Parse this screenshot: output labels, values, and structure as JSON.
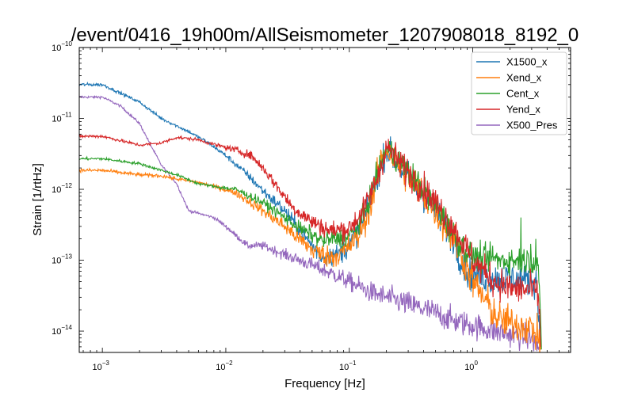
{
  "chart_data": {
    "type": "line",
    "title": "/event/0416_19h00m/AllSeismometer_1207908018_8192_0",
    "xlabel": "Frequency [Hz]",
    "ylabel": "Strain [1/rtHz]",
    "xscale": "log",
    "yscale": "log",
    "xlim": [
      0.00065,
      6.2
    ],
    "ylim": [
      5e-15,
      1e-10
    ],
    "x_ticks": [
      {
        "value": 0.001,
        "base": "10",
        "exp": "−3"
      },
      {
        "value": 0.01,
        "base": "10",
        "exp": "−2"
      },
      {
        "value": 0.1,
        "base": "10",
        "exp": "−1"
      },
      {
        "value": 1,
        "base": "10",
        "exp": "0"
      }
    ],
    "y_ticks": [
      {
        "value": 1e-10,
        "base": "10",
        "exp": "−10"
      },
      {
        "value": 1e-11,
        "base": "10",
        "exp": "−11"
      },
      {
        "value": 1e-12,
        "base": "10",
        "exp": "−12"
      },
      {
        "value": 1e-13,
        "base": "10",
        "exp": "−13"
      },
      {
        "value": 1e-14,
        "base": "10",
        "exp": "−14"
      }
    ],
    "grid": false,
    "legend_position": "top-right",
    "series": [
      {
        "name": "X1500_x",
        "color": "#1f77b4",
        "noise": 0.16,
        "points": [
          [
            0.00065,
            3e-11
          ],
          [
            0.001,
            3e-11
          ],
          [
            0.002,
            1.7e-11
          ],
          [
            0.003,
            1e-11
          ],
          [
            0.005,
            6.5e-12
          ],
          [
            0.007,
            4.7e-12
          ],
          [
            0.01,
            3e-12
          ],
          [
            0.015,
            1.6e-12
          ],
          [
            0.02,
            9.5e-13
          ],
          [
            0.03,
            5e-13
          ],
          [
            0.045,
            2e-13
          ],
          [
            0.06,
            1.1e-13
          ],
          [
            0.08,
            1.2e-13
          ],
          [
            0.1,
            1.6e-13
          ],
          [
            0.13,
            3.5e-13
          ],
          [
            0.17,
            1.5e-12
          ],
          [
            0.2,
            3.8e-12
          ],
          [
            0.25,
            2.2e-12
          ],
          [
            0.35,
            1.1e-12
          ],
          [
            0.5,
            5e-13
          ],
          [
            0.7,
            2e-13
          ],
          [
            0.8,
            1e-13
          ],
          [
            0.9,
            7e-14
          ],
          [
            1.0,
            6e-14
          ],
          [
            1.5,
            5.5e-14
          ],
          [
            2.0,
            5.5e-14
          ],
          [
            3.0,
            5.2e-14
          ],
          [
            3.3,
            5e-14
          ],
          [
            3.4,
            1.8e-14
          ],
          [
            3.55,
            6e-15
          ]
        ]
      },
      {
        "name": "Xend_x",
        "color": "#ff7f0e",
        "noise": 0.18,
        "points": [
          [
            0.00065,
            1.85e-12
          ],
          [
            0.001,
            1.85e-12
          ],
          [
            0.002,
            1.6e-12
          ],
          [
            0.003,
            1.55e-12
          ],
          [
            0.004,
            1.4e-12
          ],
          [
            0.006,
            1.25e-12
          ],
          [
            0.008,
            1.1e-12
          ],
          [
            0.012,
            9e-13
          ],
          [
            0.02,
            5e-13
          ],
          [
            0.03,
            3e-13
          ],
          [
            0.05,
            1.4e-13
          ],
          [
            0.07,
            1.1e-13
          ],
          [
            0.09,
            1.3e-13
          ],
          [
            0.12,
            2.2e-13
          ],
          [
            0.15,
            6e-13
          ],
          [
            0.18,
            2.5e-12
          ],
          [
            0.2,
            3.8e-12
          ],
          [
            0.25,
            2.2e-12
          ],
          [
            0.35,
            1.1e-12
          ],
          [
            0.5,
            5e-13
          ],
          [
            0.7,
            2e-13
          ],
          [
            0.9,
            8e-14
          ],
          [
            1.0,
            5e-14
          ],
          [
            1.3,
            2.5e-14
          ],
          [
            1.6,
            1.5e-14
          ],
          [
            2.0,
            1.3e-14
          ],
          [
            2.5,
            1.2e-14
          ],
          [
            3.0,
            1.1e-14
          ],
          [
            3.4,
            8e-15
          ],
          [
            3.55,
            5.5e-15
          ]
        ]
      },
      {
        "name": "Cent_x",
        "color": "#2ca02c",
        "noise": 0.14,
        "points": [
          [
            0.00065,
            2.7e-12
          ],
          [
            0.001,
            2.7e-12
          ],
          [
            0.002,
            2.3e-12
          ],
          [
            0.004,
            1.6e-12
          ],
          [
            0.006,
            1.2e-12
          ],
          [
            0.008,
            1.1e-12
          ],
          [
            0.012,
            1e-12
          ],
          [
            0.02,
            6.5e-13
          ],
          [
            0.03,
            4e-13
          ],
          [
            0.04,
            2.8e-13
          ],
          [
            0.06,
            1.9e-13
          ],
          [
            0.08,
            2e-13
          ],
          [
            0.1,
            2.2e-13
          ],
          [
            0.13,
            4e-13
          ],
          [
            0.16,
            1.2e-12
          ],
          [
            0.2,
            3.8e-12
          ],
          [
            0.25,
            2.6e-12
          ],
          [
            0.35,
            1.3e-12
          ],
          [
            0.5,
            6e-13
          ],
          [
            0.7,
            2.3e-13
          ],
          [
            0.9,
            1.3e-13
          ],
          [
            1.0,
            1.1e-13
          ],
          [
            1.5,
            1e-13
          ],
          [
            2.0,
            1e-13
          ],
          [
            3.0,
            1e-13
          ],
          [
            3.4,
            9e-14
          ],
          [
            3.5,
            2e-14
          ],
          [
            3.6,
            5.5e-15
          ]
        ],
        "spikes": [
          [
            0.6,
            2.2e-13
          ],
          [
            0.75,
            1.6e-13
          ],
          [
            1.05,
            1.5e-13
          ],
          [
            1.45,
            1.6e-13
          ],
          [
            2.0,
            2e-13
          ],
          [
            2.45,
            4e-13
          ],
          [
            2.95,
            1.7e-13
          ],
          [
            3.25,
            2e-13
          ]
        ]
      },
      {
        "name": "Yend_x",
        "color": "#d62728",
        "noise": 0.16,
        "points": [
          [
            0.00065,
            5.6e-12
          ],
          [
            0.001,
            5.6e-12
          ],
          [
            0.002,
            4.2e-12
          ],
          [
            0.003,
            4.5e-12
          ],
          [
            0.004,
            5.4e-12
          ],
          [
            0.006,
            5e-12
          ],
          [
            0.008,
            4.3e-12
          ],
          [
            0.012,
            3.6e-12
          ],
          [
            0.016,
            3e-12
          ],
          [
            0.02,
            2e-12
          ],
          [
            0.025,
            1.2e-12
          ],
          [
            0.035,
            5.5e-13
          ],
          [
            0.05,
            3.5e-13
          ],
          [
            0.07,
            2.6e-13
          ],
          [
            0.1,
            2.8e-13
          ],
          [
            0.13,
            5e-13
          ],
          [
            0.17,
            1.5e-12
          ],
          [
            0.2,
            4e-12
          ],
          [
            0.25,
            2.5e-12
          ],
          [
            0.35,
            1.3e-12
          ],
          [
            0.5,
            6.5e-13
          ],
          [
            0.7,
            2.8e-13
          ],
          [
            0.9,
            1.4e-13
          ],
          [
            1.0,
            1e-13
          ],
          [
            1.5,
            5e-14
          ],
          [
            2.0,
            4e-14
          ],
          [
            3.0,
            3.8e-14
          ],
          [
            3.4,
            3.5e-14
          ],
          [
            3.55,
            6e-15
          ]
        ]
      },
      {
        "name": "X500_Pres",
        "color": "#9467bd",
        "noise": 0.13,
        "points": [
          [
            0.00065,
            2e-11
          ],
          [
            0.001,
            2e-11
          ],
          [
            0.0014,
            1.5e-11
          ],
          [
            0.002,
            8.5e-12
          ],
          [
            0.0025,
            4e-12
          ],
          [
            0.003,
            2.2e-12
          ],
          [
            0.004,
            1.2e-12
          ],
          [
            0.005,
            5e-13
          ],
          [
            0.008,
            4e-13
          ],
          [
            0.01,
            3e-13
          ],
          [
            0.015,
            1.6e-13
          ],
          [
            0.02,
            1.6e-13
          ],
          [
            0.03,
            1.2e-13
          ],
          [
            0.05,
            8.5e-14
          ],
          [
            0.08,
            6e-14
          ],
          [
            0.1,
            5e-14
          ],
          [
            0.15,
            3.5e-14
          ],
          [
            0.2,
            3e-14
          ],
          [
            0.3,
            2.4e-14
          ],
          [
            0.5,
            1.8e-14
          ],
          [
            0.7,
            1.4e-14
          ],
          [
            1.0,
            1.2e-14
          ],
          [
            1.5,
            1e-14
          ],
          [
            2.0,
            9e-15
          ],
          [
            3.0,
            8e-15
          ],
          [
            3.5,
            5.5e-15
          ]
        ]
      }
    ]
  }
}
